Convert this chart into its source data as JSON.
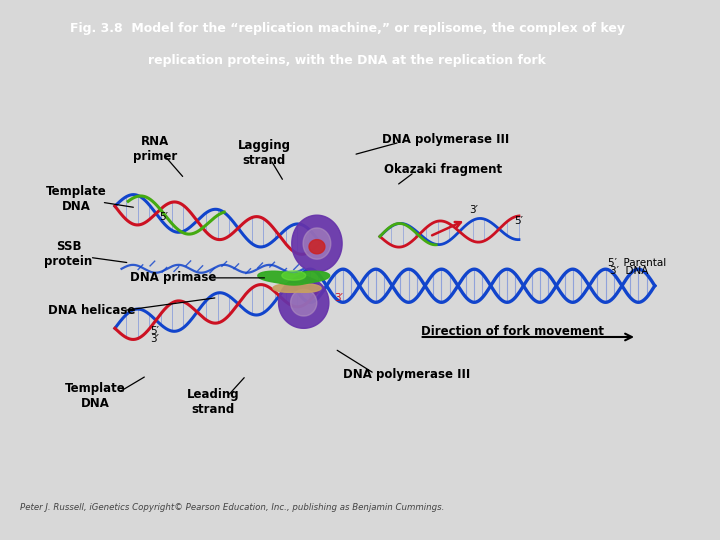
{
  "title_line1": "Fig. 3.8  Model for the “replication machine,” or replisome, the complex of key",
  "title_line2": "replication proteins, with the DNA at the replication fork",
  "title_bg_color": "#4a1042",
  "title_text_color": "#ffffff",
  "main_bg_color": "#d8d8d8",
  "diagram_bg_color": "#e8e8e8",
  "inner_bg_color": "#e0e0e0",
  "footer_text": "Peter J. Russell, iGenetics Copyright© Pearson Education, Inc., publishing as Benjamin Cummings.",
  "footer_color": "#444444",
  "blue": "#1144cc",
  "red": "#cc1122",
  "green": "#44aa11",
  "purple": "#6633aa",
  "tan": "#c8a060"
}
